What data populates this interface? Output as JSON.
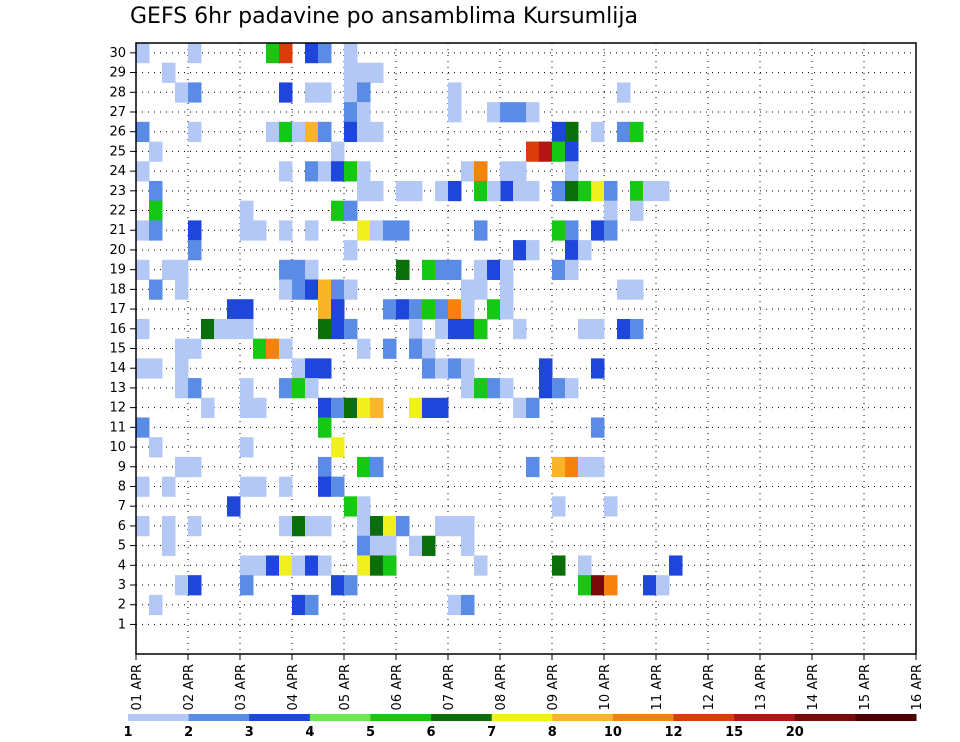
{
  "chart_data": {
    "type": "heatmap",
    "title": "GEFS 6hr padavine po ansamblima Kursumlija",
    "xlabel": "",
    "ylabel": "",
    "y_ticks": [
      "1",
      "2",
      "3",
      "4",
      "5",
      "6",
      "7",
      "8",
      "9",
      "10",
      "11",
      "12",
      "13",
      "14",
      "15",
      "16",
      "17",
      "18",
      "19",
      "20",
      "21",
      "22",
      "23",
      "24",
      "25",
      "26",
      "27",
      "28",
      "29",
      "30"
    ],
    "x_ticks": [
      "01 APR",
      "02 APR",
      "03 APR",
      "04 APR",
      "05 APR",
      "06 APR",
      "07 APR",
      "08 APR",
      "09 APR",
      "10 APR",
      "11 APR",
      "12 APR",
      "13 APR",
      "14 APR",
      "15 APR",
      "16 APR"
    ],
    "x_unit": "6h step from 01 APR",
    "x_range": [
      0,
      60
    ],
    "y_range": [
      0,
      30
    ],
    "grid": true,
    "colorbar": {
      "labels": [
        "1",
        "2",
        "3",
        "4",
        "5",
        "6",
        "7",
        "8",
        "10",
        "12",
        "15",
        "20"
      ],
      "colors": [
        "#b4c8f5",
        "#5a8ce6",
        "#1e46dc",
        "#6ee650",
        "#14c814",
        "#0a6e0a",
        "#f0f01e",
        "#fab428",
        "#f5820a",
        "#dc3c0a",
        "#b41414",
        "#780a0a",
        "#500005"
      ]
    },
    "cells": [
      [
        0,
        30,
        0
      ],
      [
        4,
        30,
        0
      ],
      [
        10,
        30,
        4
      ],
      [
        11,
        30,
        9
      ],
      [
        13,
        30,
        2
      ],
      [
        14,
        30,
        1
      ],
      [
        16,
        30,
        0
      ],
      [
        2,
        29,
        0
      ],
      [
        16,
        29,
        0
      ],
      [
        17,
        29,
        0
      ],
      [
        18,
        29,
        0
      ],
      [
        3,
        28,
        0
      ],
      [
        4,
        28,
        1
      ],
      [
        11,
        28,
        2
      ],
      [
        13,
        28,
        0
      ],
      [
        14,
        28,
        0
      ],
      [
        16,
        28,
        0
      ],
      [
        17,
        28,
        1
      ],
      [
        24,
        28,
        0
      ],
      [
        37,
        28,
        0
      ],
      [
        16,
        27,
        1
      ],
      [
        17,
        27,
        0
      ],
      [
        24,
        27,
        0
      ],
      [
        27,
        27,
        0
      ],
      [
        28,
        27,
        1
      ],
      [
        29,
        27,
        1
      ],
      [
        30,
        27,
        0
      ],
      [
        0,
        26,
        1
      ],
      [
        4,
        26,
        0
      ],
      [
        10,
        26,
        0
      ],
      [
        11,
        26,
        4
      ],
      [
        12,
        26,
        0
      ],
      [
        13,
        26,
        7
      ],
      [
        14,
        26,
        1
      ],
      [
        16,
        26,
        2
      ],
      [
        17,
        26,
        0
      ],
      [
        18,
        26,
        0
      ],
      [
        32,
        26,
        2
      ],
      [
        33,
        26,
        5
      ],
      [
        35,
        26,
        0
      ],
      [
        37,
        26,
        1
      ],
      [
        38,
        26,
        4
      ],
      [
        1,
        25,
        0
      ],
      [
        15,
        25,
        0
      ],
      [
        30,
        25,
        9
      ],
      [
        31,
        25,
        10
      ],
      [
        32,
        25,
        4
      ],
      [
        33,
        25,
        0
      ],
      [
        33,
        25,
        2
      ],
      [
        0,
        24,
        0
      ],
      [
        11,
        24,
        0
      ],
      [
        13,
        24,
        1
      ],
      [
        14,
        24,
        0
      ],
      [
        15,
        24,
        2
      ],
      [
        16,
        24,
        4
      ],
      [
        17,
        24,
        0
      ],
      [
        25,
        24,
        0
      ],
      [
        26,
        24,
        8
      ],
      [
        28,
        24,
        0
      ],
      [
        29,
        24,
        0
      ],
      [
        33,
        24,
        0
      ],
      [
        1,
        23,
        1
      ],
      [
        17,
        23,
        0
      ],
      [
        18,
        23,
        0
      ],
      [
        20,
        23,
        0
      ],
      [
        21,
        23,
        0
      ],
      [
        23,
        23,
        0
      ],
      [
        24,
        23,
        2
      ],
      [
        26,
        23,
        4
      ],
      [
        27,
        23,
        6
      ],
      [
        28,
        23,
        2
      ],
      [
        27,
        23,
        0
      ],
      [
        29,
        23,
        0
      ],
      [
        30,
        23,
        0
      ],
      [
        32,
        23,
        1
      ],
      [
        33,
        23,
        5
      ],
      [
        34,
        23,
        4
      ],
      [
        35,
        23,
        6
      ],
      [
        36,
        23,
        1
      ],
      [
        38,
        23,
        4
      ],
      [
        39,
        23,
        0
      ],
      [
        40,
        23,
        0
      ],
      [
        1,
        22,
        4
      ],
      [
        8,
        22,
        0
      ],
      [
        15,
        22,
        4
      ],
      [
        16,
        22,
        1
      ],
      [
        36,
        22,
        0
      ],
      [
        38,
        22,
        0
      ],
      [
        0,
        21,
        0
      ],
      [
        1,
        21,
        1
      ],
      [
        4,
        21,
        2
      ],
      [
        8,
        21,
        0
      ],
      [
        9,
        21,
        0
      ],
      [
        11,
        21,
        0
      ],
      [
        13,
        21,
        0
      ],
      [
        17,
        21,
        6
      ],
      [
        18,
        21,
        0
      ],
      [
        19,
        21,
        1
      ],
      [
        20,
        21,
        1
      ],
      [
        26,
        21,
        1
      ],
      [
        32,
        21,
        4
      ],
      [
        33,
        21,
        1
      ],
      [
        35,
        21,
        2
      ],
      [
        36,
        21,
        1
      ],
      [
        4,
        20,
        1
      ],
      [
        16,
        20,
        0
      ],
      [
        29,
        20,
        2
      ],
      [
        30,
        20,
        0
      ],
      [
        33,
        20,
        2
      ],
      [
        34,
        20,
        0
      ],
      [
        0,
        19,
        0
      ],
      [
        2,
        19,
        0
      ],
      [
        3,
        19,
        0
      ],
      [
        11,
        19,
        1
      ],
      [
        12,
        19,
        1
      ],
      [
        13,
        19,
        0
      ],
      [
        20,
        19,
        5
      ],
      [
        22,
        19,
        4
      ],
      [
        23,
        19,
        1
      ],
      [
        24,
        19,
        1
      ],
      [
        26,
        19,
        0
      ],
      [
        27,
        19,
        2
      ],
      [
        28,
        19,
        0
      ],
      [
        32,
        19,
        1
      ],
      [
        33,
        19,
        0
      ],
      [
        1,
        18,
        1
      ],
      [
        3,
        18,
        0
      ],
      [
        11,
        18,
        0
      ],
      [
        12,
        18,
        1
      ],
      [
        13,
        18,
        2
      ],
      [
        14,
        18,
        7
      ],
      [
        15,
        18,
        1
      ],
      [
        16,
        18,
        0
      ],
      [
        25,
        18,
        0
      ],
      [
        26,
        18,
        0
      ],
      [
        28,
        18,
        0
      ],
      [
        37,
        18,
        0
      ],
      [
        38,
        18,
        0
      ],
      [
        7,
        17,
        2
      ],
      [
        8,
        17,
        2
      ],
      [
        14,
        17,
        7
      ],
      [
        15,
        17,
        2
      ],
      [
        19,
        17,
        1
      ],
      [
        20,
        17,
        2
      ],
      [
        21,
        17,
        1
      ],
      [
        22,
        17,
        4
      ],
      [
        23,
        17,
        1
      ],
      [
        24,
        17,
        8
      ],
      [
        25,
        17,
        0
      ],
      [
        27,
        17,
        4
      ],
      [
        28,
        17,
        0
      ],
      [
        0,
        16,
        0
      ],
      [
        5,
        16,
        5
      ],
      [
        6,
        16,
        0
      ],
      [
        7,
        16,
        0
      ],
      [
        8,
        16,
        0
      ],
      [
        14,
        16,
        5
      ],
      [
        15,
        16,
        2
      ],
      [
        16,
        16,
        1
      ],
      [
        21,
        16,
        0
      ],
      [
        23,
        16,
        0
      ],
      [
        24,
        16,
        2
      ],
      [
        25,
        16,
        2
      ],
      [
        26,
        16,
        4
      ],
      [
        29,
        16,
        0
      ],
      [
        34,
        16,
        0
      ],
      [
        35,
        16,
        0
      ],
      [
        37,
        16,
        2
      ],
      [
        38,
        16,
        1
      ],
      [
        3,
        15,
        0
      ],
      [
        4,
        15,
        0
      ],
      [
        9,
        15,
        4
      ],
      [
        10,
        15,
        8
      ],
      [
        11,
        15,
        0
      ],
      [
        17,
        15,
        0
      ],
      [
        19,
        15,
        1
      ],
      [
        21,
        15,
        1
      ],
      [
        22,
        15,
        0
      ],
      [
        0,
        14,
        0
      ],
      [
        1,
        14,
        0
      ],
      [
        3,
        14,
        0
      ],
      [
        12,
        14,
        0
      ],
      [
        13,
        14,
        2
      ],
      [
        14,
        14,
        2
      ],
      [
        22,
        14,
        1
      ],
      [
        23,
        14,
        0
      ],
      [
        24,
        14,
        1
      ],
      [
        25,
        14,
        0
      ],
      [
        31,
        14,
        2
      ],
      [
        35,
        14,
        2
      ],
      [
        3,
        13,
        0
      ],
      [
        4,
        13,
        1
      ],
      [
        8,
        13,
        0
      ],
      [
        11,
        13,
        1
      ],
      [
        12,
        13,
        4
      ],
      [
        13,
        13,
        0
      ],
      [
        25,
        13,
        0
      ],
      [
        26,
        13,
        4
      ],
      [
        27,
        13,
        1
      ],
      [
        28,
        13,
        0
      ],
      [
        31,
        13,
        2
      ],
      [
        32,
        13,
        1
      ],
      [
        33,
        13,
        0
      ],
      [
        5,
        12,
        0
      ],
      [
        8,
        12,
        0
      ],
      [
        9,
        12,
        0
      ],
      [
        14,
        12,
        2
      ],
      [
        15,
        12,
        1
      ],
      [
        16,
        12,
        5
      ],
      [
        17,
        12,
        6
      ],
      [
        18,
        12,
        7
      ],
      [
        21,
        12,
        6
      ],
      [
        22,
        12,
        2
      ],
      [
        23,
        12,
        2
      ],
      [
        29,
        12,
        0
      ],
      [
        30,
        12,
        1
      ],
      [
        0,
        11,
        1
      ],
      [
        14,
        11,
        4
      ],
      [
        35,
        11,
        1
      ],
      [
        1,
        10,
        0
      ],
      [
        8,
        10,
        0
      ],
      [
        15,
        10,
        6
      ],
      [
        3,
        9,
        0
      ],
      [
        3,
        9,
        0
      ],
      [
        4,
        9,
        0
      ],
      [
        14,
        9,
        1
      ],
      [
        17,
        9,
        4
      ],
      [
        18,
        9,
        1
      ],
      [
        30,
        9,
        1
      ],
      [
        32,
        9,
        7
      ],
      [
        33,
        9,
        8
      ],
      [
        34,
        9,
        0
      ],
      [
        35,
        9,
        0
      ],
      [
        0,
        8,
        0
      ],
      [
        2,
        8,
        0
      ],
      [
        8,
        8,
        0
      ],
      [
        9,
        8,
        0
      ],
      [
        11,
        8,
        0
      ],
      [
        14,
        8,
        2
      ],
      [
        15,
        8,
        1
      ],
      [
        7,
        7,
        2
      ],
      [
        16,
        7,
        4
      ],
      [
        17,
        7,
        0
      ],
      [
        32,
        7,
        0
      ],
      [
        36,
        7,
        0
      ],
      [
        0,
        6,
        0
      ],
      [
        2,
        6,
        0
      ],
      [
        4,
        6,
        0
      ],
      [
        11,
        6,
        0
      ],
      [
        12,
        6,
        5
      ],
      [
        13,
        6,
        0
      ],
      [
        14,
        6,
        0
      ],
      [
        17,
        6,
        0
      ],
      [
        18,
        6,
        5
      ],
      [
        19,
        6,
        6
      ],
      [
        20,
        6,
        1
      ],
      [
        23,
        6,
        0
      ],
      [
        24,
        6,
        0
      ],
      [
        25,
        6,
        0
      ],
      [
        2,
        5,
        0
      ],
      [
        17,
        5,
        1
      ],
      [
        18,
        5,
        0
      ],
      [
        19,
        5,
        0
      ],
      [
        21,
        5,
        0
      ],
      [
        22,
        5,
        5
      ],
      [
        25,
        5,
        0
      ],
      [
        8,
        4,
        0
      ],
      [
        9,
        4,
        0
      ],
      [
        10,
        4,
        2
      ],
      [
        11,
        4,
        6
      ],
      [
        12,
        4,
        0
      ],
      [
        13,
        4,
        2
      ],
      [
        14,
        4,
        0
      ],
      [
        17,
        4,
        6
      ],
      [
        18,
        4,
        5
      ],
      [
        19,
        4,
        4
      ],
      [
        26,
        4,
        0
      ],
      [
        32,
        4,
        5
      ],
      [
        34,
        4,
        0
      ],
      [
        41,
        4,
        2
      ],
      [
        3,
        3,
        0
      ],
      [
        4,
        3,
        2
      ],
      [
        8,
        3,
        1
      ],
      [
        15,
        3,
        2
      ],
      [
        16,
        3,
        1
      ],
      [
        34,
        3,
        4
      ],
      [
        35,
        3,
        11
      ],
      [
        36,
        3,
        8
      ],
      [
        39,
        3,
        2
      ],
      [
        40,
        3,
        0
      ],
      [
        1,
        2,
        0
      ],
      [
        12,
        2,
        2
      ],
      [
        13,
        2,
        1
      ],
      [
        24,
        2,
        0
      ],
      [
        25,
        2,
        1
      ]
    ]
  }
}
